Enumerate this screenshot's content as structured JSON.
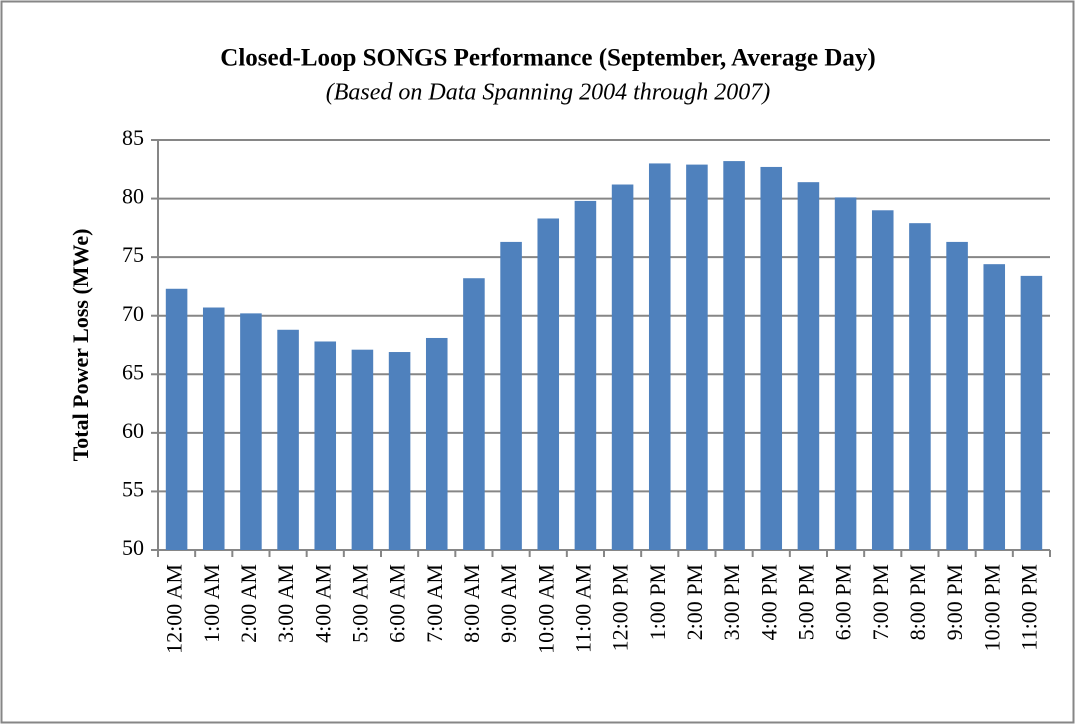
{
  "chart_data": {
    "type": "bar",
    "title": "Closed-Loop SONGS Performance (September, Average Day)",
    "subtitle": "(Based on Data Spanning 2004 through 2007)",
    "y_label": "Total Power Loss (MWe)",
    "categories": [
      "12:00 AM",
      "1:00 AM",
      "2:00 AM",
      "3:00 AM",
      "4:00 AM",
      "5:00 AM",
      "6:00 AM",
      "7:00 AM",
      "8:00 AM",
      "9:00 AM",
      "10:00 AM",
      "11:00 AM",
      "12:00 PM",
      "1:00 PM",
      "2:00 PM",
      "3:00 PM",
      "4:00 PM",
      "5:00 PM",
      "6:00 PM",
      "7:00 PM",
      "8:00 PM",
      "9:00 PM",
      "10:00 PM",
      "11:00 PM"
    ],
    "values": [
      72.3,
      70.7,
      70.2,
      68.8,
      67.8,
      67.1,
      66.9,
      68.1,
      73.2,
      76.3,
      78.3,
      79.8,
      81.2,
      83.0,
      82.9,
      83.2,
      82.7,
      81.4,
      80.1,
      79.0,
      77.9,
      76.3,
      74.4,
      73.4
    ],
    "color": "#4f81bd",
    "ylim": [
      50,
      85
    ],
    "yticks": [
      50,
      55,
      60,
      65,
      70,
      75,
      80,
      85
    ],
    "grid": true
  }
}
